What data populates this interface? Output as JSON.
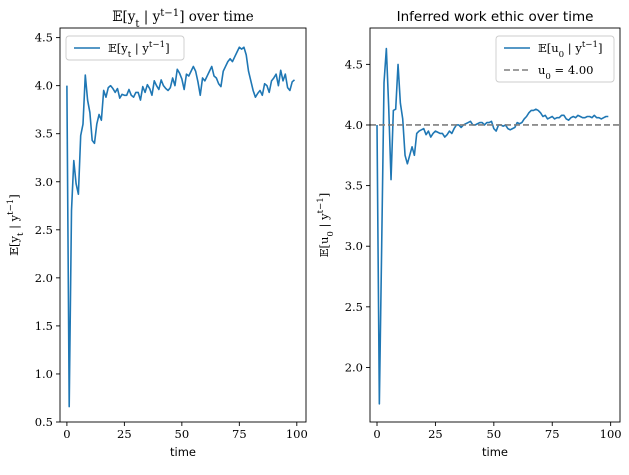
{
  "chart_data": [
    {
      "type": "line",
      "title": "𝔼[y_t | y^{t−1}] over time",
      "xlabel": "time",
      "ylabel": "𝔼[y_t | y^{t−1}]",
      "xlim": [
        -3,
        104
      ],
      "ylim": [
        0.5,
        4.6
      ],
      "xticks": [
        "0",
        "25",
        "50",
        "75",
        "100"
      ],
      "yticks": [
        "0.5",
        "1.0",
        "1.5",
        "2.0",
        "2.5",
        "3.0",
        "3.5",
        "4.0",
        "4.5"
      ],
      "xtick_values": [
        0,
        25,
        50,
        75,
        100
      ],
      "ytick_values": [
        0.5,
        1.0,
        1.5,
        2.0,
        2.5,
        3.0,
        3.5,
        4.0,
        4.5
      ],
      "legend_position": "top-left",
      "series": [
        {
          "name": "𝔼[y_t | y^{t−1}]",
          "color": "#1f77b4",
          "x": [
            0,
            1,
            2,
            3,
            4,
            5,
            6,
            7,
            8,
            9,
            10,
            11,
            12,
            13,
            14,
            15,
            16,
            17,
            18,
            19,
            20,
            21,
            22,
            23,
            24,
            25,
            26,
            27,
            28,
            29,
            30,
            31,
            32,
            33,
            34,
            35,
            36,
            37,
            38,
            39,
            40,
            41,
            42,
            43,
            44,
            45,
            46,
            47,
            48,
            49,
            50,
            51,
            52,
            53,
            54,
            55,
            56,
            57,
            58,
            59,
            60,
            61,
            62,
            63,
            64,
            65,
            66,
            67,
            68,
            69,
            70,
            71,
            72,
            73,
            74,
            75,
            76,
            77,
            78,
            79,
            80,
            81,
            82,
            83,
            84,
            85,
            86,
            87,
            88,
            89,
            90,
            91,
            92,
            93,
            94,
            95,
            96,
            97,
            98,
            99
          ],
          "values": [
            4.0,
            0.66,
            2.7,
            3.22,
            2.98,
            2.87,
            3.48,
            3.6,
            4.11,
            3.85,
            3.72,
            3.43,
            3.4,
            3.6,
            3.7,
            3.64,
            3.95,
            3.88,
            3.98,
            4.0,
            3.97,
            3.93,
            3.97,
            3.87,
            3.91,
            3.9,
            3.9,
            3.96,
            3.9,
            3.88,
            3.93,
            3.93,
            3.85,
            3.99,
            3.93,
            4.01,
            3.97,
            3.9,
            4.05,
            4.0,
            3.96,
            4.06,
            4.0,
            3.97,
            3.95,
            3.98,
            4.08,
            4.0,
            4.17,
            4.13,
            4.07,
            3.96,
            4.12,
            4.1,
            4.15,
            4.2,
            4.15,
            4.04,
            3.9,
            4.08,
            4.05,
            4.1,
            4.15,
            4.2,
            4.1,
            4.08,
            4.02,
            3.99,
            4.15,
            4.2,
            4.25,
            4.28,
            4.25,
            4.3,
            4.35,
            4.4,
            4.38,
            4.4,
            4.32,
            4.15,
            4.05,
            3.95,
            3.88,
            3.92,
            3.95,
            3.9,
            4.02,
            4.0,
            3.93,
            4.05,
            4.08,
            4.12,
            4.0,
            4.16,
            4.05,
            4.12,
            3.98,
            3.95,
            4.04,
            4.06
          ]
        }
      ]
    },
    {
      "type": "line",
      "title": "Inferred work ethic over time",
      "xlabel": "time",
      "ylabel": "𝔼[u_0 | y^{t−1}]",
      "xlim": [
        -3,
        104
      ],
      "ylim": [
        1.55,
        4.8
      ],
      "xticks": [
        "0",
        "25",
        "50",
        "75",
        "100"
      ],
      "yticks": [
        "2.0",
        "2.5",
        "3.0",
        "3.5",
        "4.0",
        "4.5"
      ],
      "xtick_values": [
        0,
        25,
        50,
        75,
        100
      ],
      "ytick_values": [
        2.0,
        2.5,
        3.0,
        3.5,
        4.0,
        4.5
      ],
      "legend_position": "top-right",
      "series": [
        {
          "name": "𝔼[u_0 | y^{t−1}]",
          "color": "#1f77b4",
          "style": "solid",
          "x": [
            0,
            1,
            2,
            3,
            4,
            5,
            6,
            7,
            8,
            9,
            10,
            11,
            12,
            13,
            14,
            15,
            16,
            17,
            18,
            19,
            20,
            21,
            22,
            23,
            24,
            25,
            26,
            27,
            28,
            29,
            30,
            31,
            32,
            33,
            34,
            35,
            36,
            37,
            38,
            39,
            40,
            41,
            42,
            43,
            44,
            45,
            46,
            47,
            48,
            49,
            50,
            51,
            52,
            53,
            54,
            55,
            56,
            57,
            58,
            59,
            60,
            61,
            62,
            63,
            64,
            65,
            66,
            67,
            68,
            69,
            70,
            71,
            72,
            73,
            74,
            75,
            76,
            77,
            78,
            79,
            80,
            81,
            82,
            83,
            84,
            85,
            86,
            87,
            88,
            89,
            90,
            91,
            92,
            93,
            94,
            95,
            96,
            97,
            98,
            99
          ],
          "values": [
            4.0,
            1.7,
            3.0,
            4.35,
            4.63,
            4.15,
            3.55,
            4.12,
            4.13,
            4.5,
            4.18,
            4.05,
            3.75,
            3.68,
            3.75,
            3.82,
            3.75,
            3.93,
            3.95,
            3.96,
            3.97,
            3.92,
            3.95,
            3.9,
            3.93,
            3.95,
            3.94,
            3.93,
            3.93,
            3.9,
            3.92,
            3.95,
            3.93,
            3.97,
            4.0,
            4.0,
            3.98,
            4.0,
            4.01,
            4.02,
            4.03,
            4.0,
            4.0,
            4.01,
            4.02,
            4.02,
            4.0,
            4.02,
            4.02,
            4.03,
            3.97,
            3.95,
            4.0,
            4.0,
            3.99,
            4.0,
            3.97,
            3.96,
            3.97,
            3.98,
            4.02,
            4.01,
            4.02,
            4.05,
            4.07,
            4.1,
            4.12,
            4.12,
            4.13,
            4.12,
            4.1,
            4.07,
            4.08,
            4.05,
            4.06,
            4.07,
            4.05,
            4.06,
            4.06,
            4.08,
            4.08,
            4.05,
            4.04,
            4.06,
            4.07,
            4.06,
            4.08,
            4.07,
            4.06,
            4.06,
            4.07,
            4.07,
            4.06,
            4.08,
            4.06,
            4.06,
            4.05,
            4.06,
            4.07,
            4.07
          ]
        },
        {
          "name": "u_0 = 4.00",
          "color": "#7f7f7f",
          "style": "dashed",
          "y": 4.0
        }
      ]
    }
  ]
}
